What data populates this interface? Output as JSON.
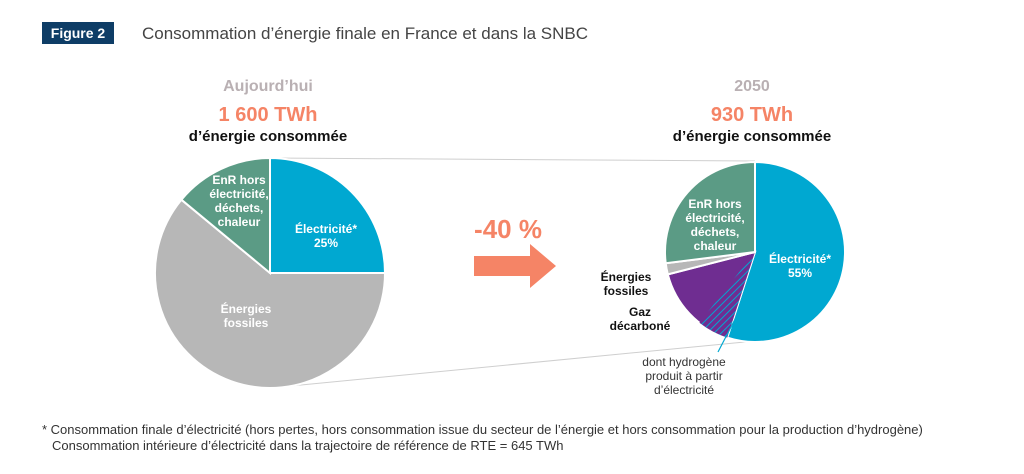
{
  "figure": {
    "label": "Figure 2",
    "title": "Consommation d’énergie finale en France et dans la SNBC"
  },
  "colors": {
    "electricite": "#00a8d1",
    "fossiles": "#b7b7b7",
    "enr": "#5b9b85",
    "gaz": "#6f2d91",
    "accent": "#f58466",
    "badge": "#0e3d66"
  },
  "arrow": {
    "label": "-40 %"
  },
  "chart_data": [
    {
      "type": "pie",
      "title": "Aujourd’hui",
      "total_value": "1 600 TWh",
      "total_caption": "d’énergie consommée",
      "slices": [
        {
          "label_lines": [
            "Électricité*",
            "25%"
          ],
          "value": 25,
          "color": "#00a8d1"
        },
        {
          "label_lines": [
            "Énergies",
            "fossiles"
          ],
          "value": 61,
          "color": "#b7b7b7"
        },
        {
          "label_lines": [
            "EnR hors",
            "électricité,",
            "déchets,",
            "chaleur"
          ],
          "value": 14,
          "color": "#5b9b85"
        }
      ]
    },
    {
      "type": "pie",
      "title": "2050",
      "total_value": "930 TWh",
      "total_caption": "d’énergie consommée",
      "slices": [
        {
          "label_lines": [
            "Électricité*",
            "55%"
          ],
          "value": 55,
          "color": "#00a8d1"
        },
        {
          "label_lines": [
            "Gaz",
            "décarboné"
          ],
          "value": 16,
          "color": "#6f2d91",
          "hatched": true
        },
        {
          "label_lines": [
            "Énergies",
            "fossiles"
          ],
          "value": 2,
          "color": "#b7b7b7"
        },
        {
          "label_lines": [
            "EnR hors",
            "électricité,",
            "déchets,",
            "chaleur"
          ],
          "value": 27,
          "color": "#5b9b85"
        }
      ],
      "annotation_lines": [
        "dont hydrogène",
        "produit à partir",
        "d’électricité"
      ]
    }
  ],
  "footnote": {
    "line1": "* Consommation finale d’électricité (hors pertes, hors consommation issue du secteur de l’énergie et hors consommation pour la production d’hydrogène)",
    "line2": "Consommation intérieure d’électricité dans la trajectoire de référence de RTE = 645 TWh"
  }
}
